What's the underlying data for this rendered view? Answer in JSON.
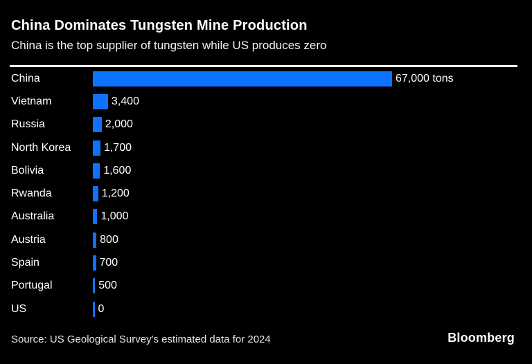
{
  "header": {
    "title": "China Dominates Tungsten Mine Production",
    "subtitle": "China is the top supplier of tungsten while US produces zero"
  },
  "footer": {
    "source": "Source: US Geological Survey's estimated data for 2024",
    "brand": "Bloomberg"
  },
  "colors": {
    "background": "#000000",
    "bar": "#0d73ff",
    "text": "#ffffff",
    "rule": "#ffffff"
  },
  "chart_data": {
    "type": "bar",
    "orientation": "horizontal",
    "title": "China Dominates Tungsten Mine Production",
    "subtitle": "China is the top supplier of tungsten while US produces zero",
    "categories": [
      "China",
      "Vietnam",
      "Russia",
      "North Korea",
      "Bolivia",
      "Rwanda",
      "Australia",
      "Austria",
      "Spain",
      "Portugal",
      "US"
    ],
    "values": [
      67000,
      3400,
      2000,
      1700,
      1600,
      1200,
      1000,
      800,
      700,
      500,
      0
    ],
    "value_labels": [
      "67,000 tons",
      "3,400",
      "2,000",
      "1,700",
      "1,600",
      "1,200",
      "1,000",
      "800",
      "700",
      "500",
      "0"
    ],
    "unit": "tons",
    "xlim": [
      0,
      67000
    ],
    "max_value": 67000,
    "grid": false,
    "legend": false,
    "bar_color": "#0d73ff"
  }
}
